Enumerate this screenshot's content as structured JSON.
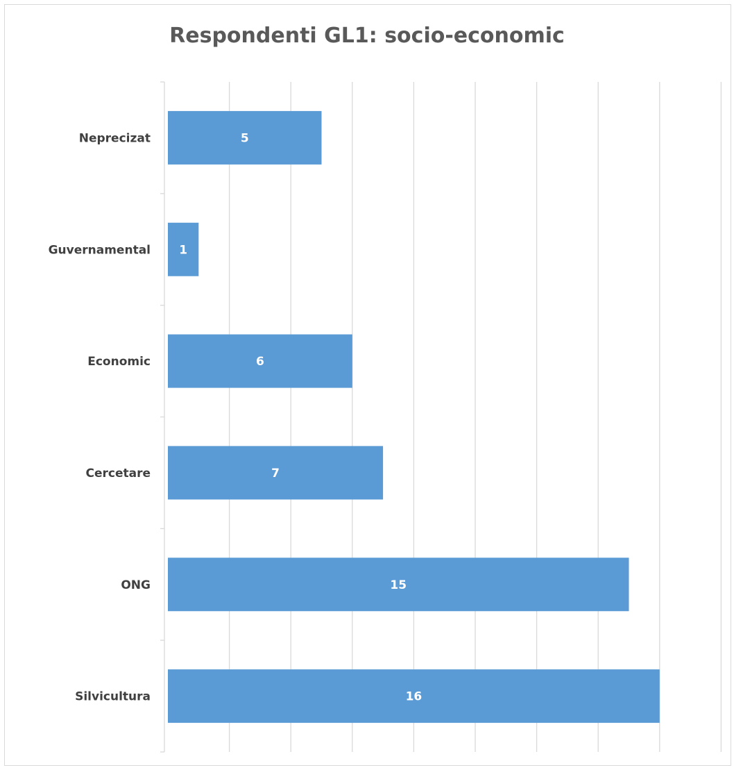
{
  "chart_data": {
    "type": "bar",
    "orientation": "horizontal",
    "title": "Respondenti GL1: socio-economic",
    "xlabel": "",
    "ylabel": "",
    "categories": [
      "Neprecizat",
      "Guvernamental",
      "Economic",
      "Cercetare",
      "ONG",
      "Silvicultura"
    ],
    "values": [
      5,
      1,
      6,
      7,
      15,
      16
    ],
    "xlim": [
      0,
      18
    ],
    "grid": "vertical",
    "legend": "none",
    "data_labels": "inside",
    "bar_color": "#5b9bd5"
  }
}
